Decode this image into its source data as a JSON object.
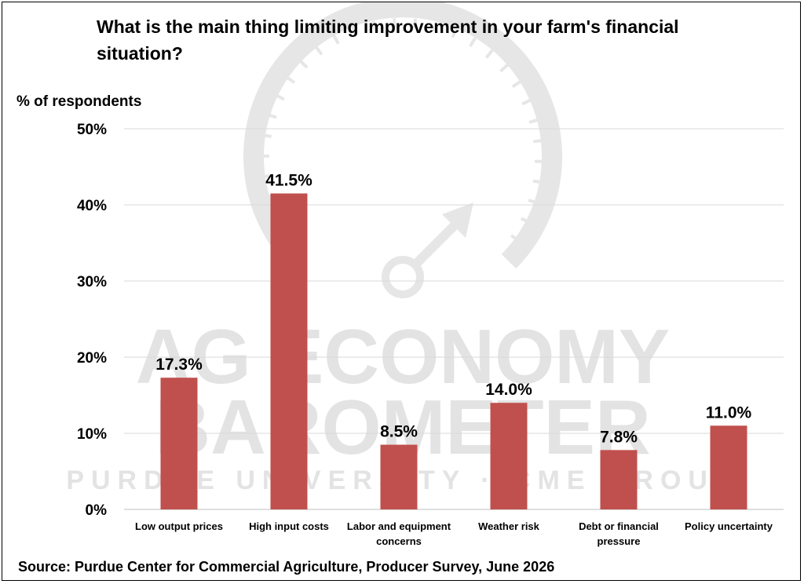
{
  "title": "What is the main thing limiting improvement in your farm's financial situation?",
  "source": "Source: Purdue Center for Commercial Agriculture, Producer Survey, June 2026",
  "watermark": {
    "line1": "AG ECONOMY",
    "line2": "BAROMETER",
    "line3": "PURDUE UNIVERSITY · CME GROUP"
  },
  "chart_data": {
    "type": "bar",
    "ylabel": "% of respondents",
    "ylim": [
      0,
      50
    ],
    "yticks": [
      0,
      10,
      20,
      30,
      40,
      50
    ],
    "ytick_labels": [
      "0%",
      "10%",
      "20%",
      "30%",
      "40%",
      "50%"
    ],
    "grid": true,
    "categories": [
      [
        "Low output prices"
      ],
      [
        "High input costs"
      ],
      [
        "Labor and equipment",
        "concerns"
      ],
      [
        "Weather risk"
      ],
      [
        "Debt or financial",
        "pressure"
      ],
      [
        "Policy uncertainty"
      ]
    ],
    "values": [
      17.3,
      41.5,
      8.5,
      14.0,
      7.8,
      11.0
    ],
    "data_labels": [
      "17.3%",
      "41.5%",
      "8.5%",
      "14.0%",
      "7.8%",
      "11.0%"
    ],
    "bar_color": "#c0504d"
  }
}
